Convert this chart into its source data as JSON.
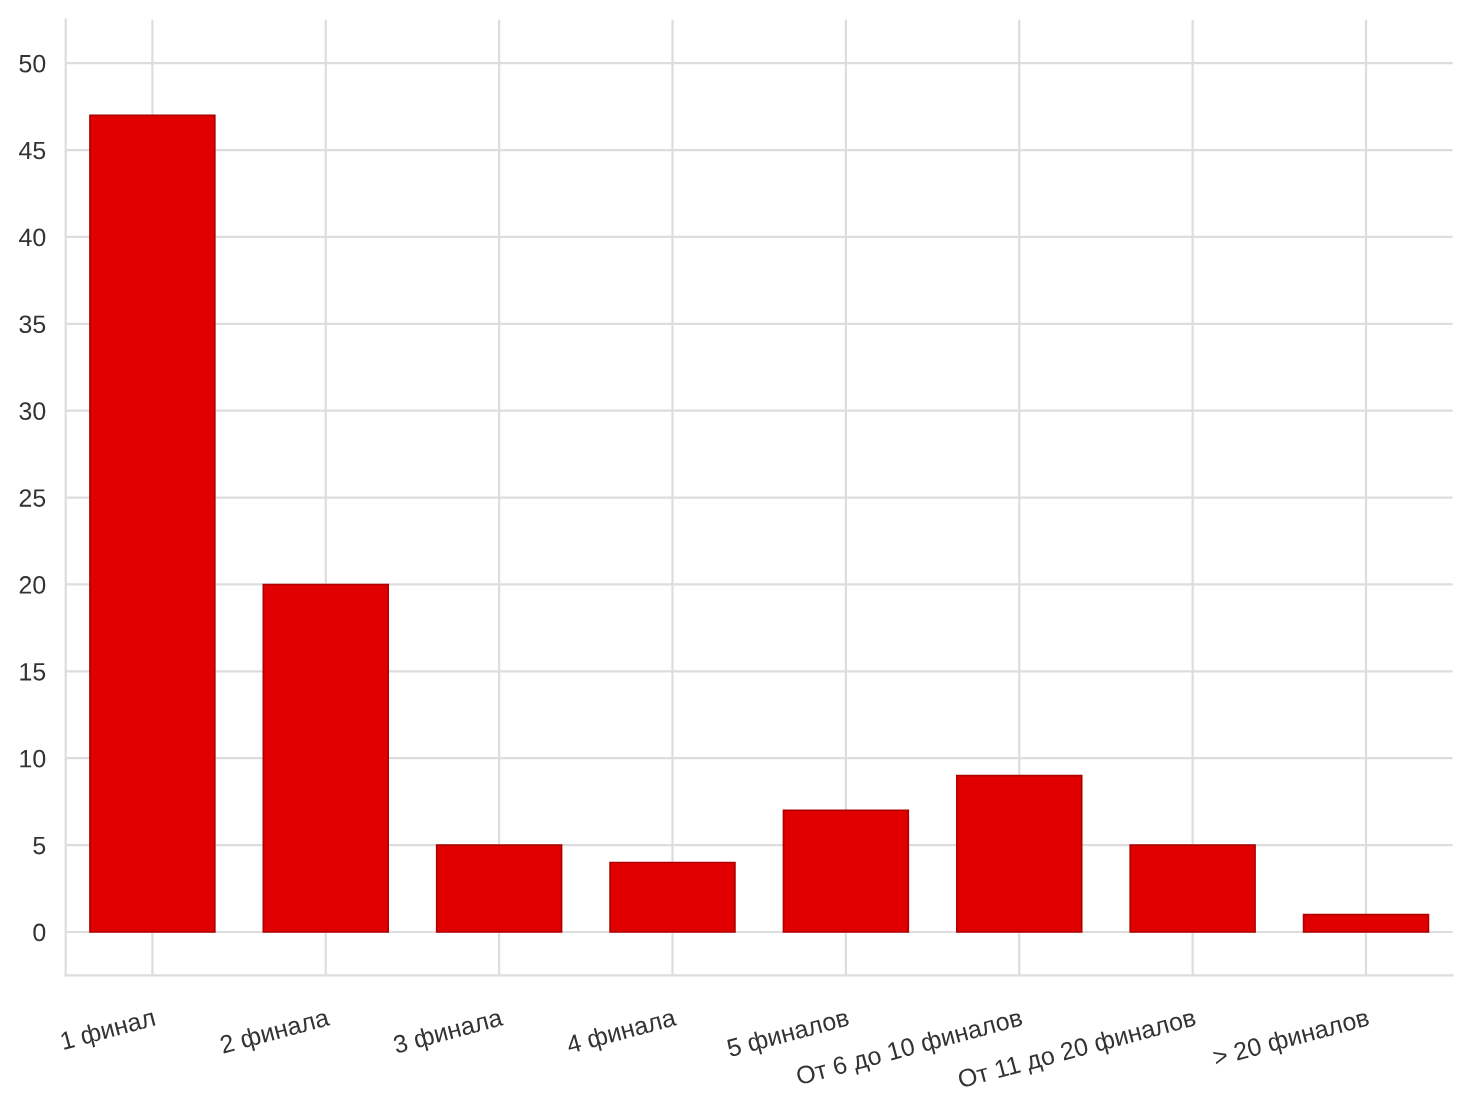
{
  "chart_data": {
    "type": "bar",
    "categories": [
      "1 финал",
      "2 финала",
      "3 финала",
      "4 финала",
      "5 финалов",
      "От 6 до 10 финалов",
      "От 11 до 20 финалов",
      "> 20 финалов"
    ],
    "values": [
      47,
      20,
      5,
      4,
      7,
      9,
      5,
      1
    ],
    "color": "#e00000",
    "ylim": [
      -2.5,
      52.5
    ],
    "yticks": [
      0,
      5,
      10,
      15,
      20,
      25,
      30,
      35,
      40,
      45,
      50
    ],
    "grid": true
  }
}
